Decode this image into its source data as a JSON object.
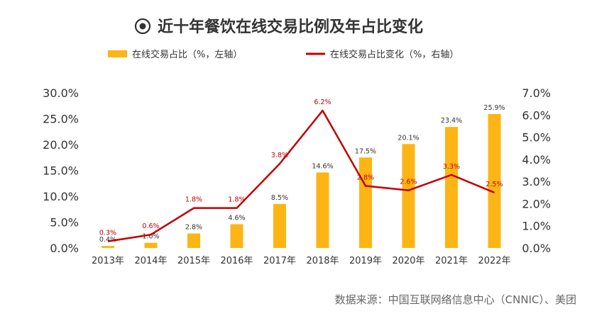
{
  "chart_data": {
    "type": "bar+line",
    "title": "近十年餐饮在线交易比例及年占比变化",
    "categories": [
      "2013年",
      "2014年",
      "2015年",
      "2016年",
      "2017年",
      "2018年",
      "2019年",
      "2020年",
      "2021年",
      "2022年"
    ],
    "series": [
      {
        "name": "在线交易占比（%，左轴）",
        "type": "bar",
        "axis": "left",
        "color": "#FDB515",
        "values": [
          0.4,
          1.0,
          2.8,
          4.6,
          8.5,
          14.6,
          17.5,
          20.1,
          23.4,
          25.9
        ],
        "labels": [
          "0.4%",
          "1.0%",
          "2.8%",
          "4.6%",
          "8.5%",
          "14.6%",
          "17.5%",
          "20.1%",
          "23.4%",
          "25.9%"
        ]
      },
      {
        "name": "在线交易占比变化（%，右轴）",
        "type": "line",
        "axis": "right",
        "color": "#C00000",
        "values": [
          0.3,
          0.6,
          1.8,
          1.8,
          3.8,
          6.2,
          2.8,
          2.6,
          3.3,
          2.5
        ],
        "labels": [
          "0.3%",
          "0.6%",
          "1.8%",
          "1.8%",
          "3.8%",
          "6.2%",
          "2.8%",
          "2.6%",
          "3.3%",
          "2.5%"
        ]
      }
    ],
    "left_axis": {
      "min": 0,
      "max": 30,
      "ticks": [
        "0.0%",
        "5.0%",
        "10.0%",
        "15.0%",
        "20.0%",
        "25.0%",
        "30.0%"
      ]
    },
    "right_axis": {
      "min": 0,
      "max": 7,
      "ticks": [
        "0.0%",
        "1.0%",
        "2.0%",
        "3.0%",
        "4.0%",
        "5.0%",
        "6.0%",
        "7.0%"
      ]
    },
    "source": "数据来源：中国互联网络信息中心（CNNIC）、美团"
  }
}
